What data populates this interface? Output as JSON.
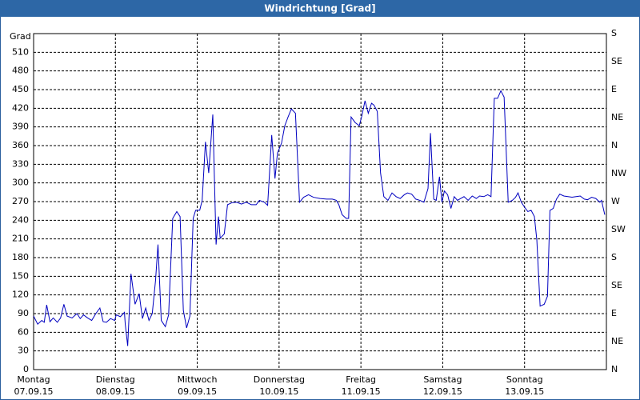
{
  "chart_data": {
    "type": "line",
    "title": "Windrichtung [Grad]",
    "y_label": "Grad",
    "color": "#0000c0",
    "xlim": [
      0,
      7
    ],
    "xticks": [
      {
        "value": 0,
        "label": "Montag",
        "date": "07.09.15"
      },
      {
        "value": 1,
        "label": "Dienstag",
        "date": "08.09.15"
      },
      {
        "value": 2,
        "label": "Mittwoch",
        "date": "09.09.15"
      },
      {
        "value": 3,
        "label": "Donnerstag",
        "date": "10.09.15"
      },
      {
        "value": 4,
        "label": "Freitag",
        "date": "11.09.15"
      },
      {
        "value": 5,
        "label": "Samstag",
        "date": "12.09.15"
      },
      {
        "value": 6,
        "label": "Sonntag",
        "date": "13.09.15"
      }
    ],
    "ylim": [
      0,
      540
    ],
    "yticks": [
      0,
      30,
      60,
      90,
      120,
      150,
      180,
      210,
      240,
      270,
      300,
      330,
      360,
      390,
      420,
      450,
      480,
      510
    ],
    "y2lim": [
      0,
      540
    ],
    "y2ticks": [
      {
        "value": 0,
        "label": "N"
      },
      {
        "value": 45,
        "label": "NE"
      },
      {
        "value": 90,
        "label": "E"
      },
      {
        "value": 135,
        "label": "SE"
      },
      {
        "value": 180,
        "label": "S"
      },
      {
        "value": 225,
        "label": "SW"
      },
      {
        "value": 270,
        "label": "W"
      },
      {
        "value": 315,
        "label": "NW"
      },
      {
        "value": 360,
        "label": "N"
      },
      {
        "value": 405,
        "label": "NE"
      },
      {
        "value": 450,
        "label": "E"
      },
      {
        "value": 495,
        "label": "SE"
      },
      {
        "value": 540,
        "label": "S"
      }
    ],
    "grid": true,
    "x": [
      0.0,
      0.05,
      0.1,
      0.13,
      0.16,
      0.2,
      0.24,
      0.29,
      0.33,
      0.37,
      0.41,
      0.47,
      0.53,
      0.57,
      0.61,
      0.66,
      0.71,
      0.76,
      0.81,
      0.85,
      0.89,
      0.94,
      0.99,
      1.01,
      1.06,
      1.11,
      1.12,
      1.15,
      1.19,
      1.24,
      1.29,
      1.33,
      1.37,
      1.41,
      1.45,
      1.49,
      1.52,
      1.56,
      1.61,
      1.65,
      1.7,
      1.75,
      1.79,
      1.83,
      1.87,
      1.91,
      1.95,
      1.98,
      2.03,
      2.06,
      2.1,
      2.14,
      2.19,
      2.23,
      2.26,
      2.28,
      2.33,
      2.37,
      2.42,
      2.48,
      2.54,
      2.6,
      2.66,
      2.72,
      2.76,
      2.82,
      2.86,
      2.91,
      2.95,
      2.98,
      3.03,
      3.07,
      3.11,
      3.15,
      3.2,
      3.25,
      3.3,
      3.36,
      3.42,
      3.5,
      3.58,
      3.65,
      3.7,
      3.73,
      3.77,
      3.82,
      3.85,
      3.88,
      3.93,
      3.98,
      4.01,
      4.05,
      4.09,
      4.13,
      4.16,
      4.2,
      4.24,
      4.28,
      4.33,
      4.38,
      4.43,
      4.48,
      4.53,
      4.57,
      4.62,
      4.67,
      4.72,
      4.77,
      4.82,
      4.85,
      4.89,
      4.92,
      4.96,
      4.99,
      5.02,
      5.06,
      5.1,
      5.14,
      5.18,
      5.22,
      5.26,
      5.31,
      5.36,
      5.41,
      5.45,
      5.5,
      5.55,
      5.59,
      5.63,
      5.67,
      5.71,
      5.75,
      5.8,
      5.85,
      5.89,
      5.92,
      5.96,
      6.0,
      6.04,
      6.08,
      6.12,
      6.15,
      6.19,
      6.24,
      6.28,
      6.31,
      6.35,
      6.39,
      6.43,
      6.48,
      6.53,
      6.58,
      6.63,
      6.68,
      6.73,
      6.77,
      6.82,
      6.87,
      6.92,
      6.94,
      6.98
    ],
    "values": [
      86,
      73,
      79,
      76,
      104,
      77,
      83,
      76,
      83,
      105,
      86,
      83,
      90,
      82,
      88,
      83,
      79,
      90,
      99,
      77,
      76,
      82,
      79,
      88,
      85,
      92,
      73,
      38,
      154,
      105,
      122,
      82,
      99,
      79,
      90,
      143,
      201,
      79,
      69,
      88,
      243,
      254,
      246,
      95,
      67,
      86,
      243,
      256,
      256,
      272,
      366,
      316,
      410,
      201,
      246,
      211,
      218,
      265,
      268,
      269,
      266,
      269,
      265,
      265,
      272,
      269,
      264,
      377,
      307,
      348,
      364,
      392,
      406,
      419,
      412,
      269,
      277,
      281,
      277,
      275,
      274,
      274,
      272,
      265,
      249,
      243,
      243,
      406,
      397,
      392,
      407,
      432,
      412,
      428,
      425,
      415,
      316,
      278,
      272,
      284,
      278,
      275,
      281,
      284,
      282,
      274,
      272,
      269,
      291,
      380,
      274,
      272,
      310,
      269,
      287,
      281,
      259,
      278,
      272,
      275,
      278,
      272,
      279,
      275,
      279,
      278,
      281,
      278,
      436,
      436,
      448,
      438,
      269,
      272,
      277,
      284,
      269,
      261,
      254,
      256,
      246,
      208,
      102,
      105,
      118,
      256,
      259,
      274,
      282,
      279,
      278,
      277,
      278,
      279,
      274,
      273,
      277,
      275,
      269,
      272,
      249
    ]
  }
}
